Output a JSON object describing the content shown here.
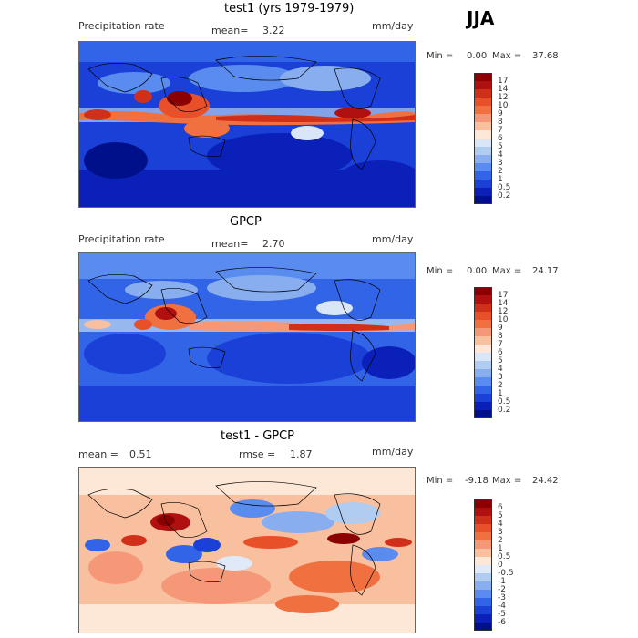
{
  "season": "JJA",
  "panels": [
    {
      "title": "test1 (yrs 1979-1979)",
      "variable": "Precipitation rate",
      "mean_label": "mean=",
      "mean_value": "3.22",
      "units": "mm/day",
      "min_label": "Min =",
      "min_value": "0.00",
      "max_label": "Max =",
      "max_value": "37.68",
      "colorbar": {
        "labels": [
          "17",
          "14",
          "12",
          "10",
          "9",
          "8",
          "7",
          "6",
          "5",
          "4",
          "3",
          "2",
          "1",
          "0.5",
          "0.2"
        ],
        "colors": [
          "#8b0000",
          "#b01010",
          "#d0301a",
          "#e8502a",
          "#f07040",
          "#f59878",
          "#f9c0a0",
          "#fde8d8",
          "#d8e6f8",
          "#b0ccf0",
          "#88aef0",
          "#5a8cf0",
          "#3264e8",
          "#1a40d8",
          "#0a20b8",
          "#00108a"
        ]
      },
      "chart_data": {
        "type": "heatmap",
        "title": "test1 (yrs 1979-1979)",
        "units": "mm/day",
        "mean": 3.22,
        "min": 0.0,
        "max": 37.68,
        "levels": [
          0.2,
          0.5,
          1,
          2,
          3,
          4,
          5,
          6,
          7,
          8,
          9,
          10,
          12,
          14,
          17
        ]
      }
    },
    {
      "title": "GPCP",
      "variable": "Precipitation rate",
      "mean_label": "mean=",
      "mean_value": "2.70",
      "units": "mm/day",
      "min_label": "Min =",
      "min_value": "0.00",
      "max_label": "Max =",
      "max_value": "24.17",
      "colorbar": {
        "labels": [
          "17",
          "14",
          "12",
          "10",
          "9",
          "8",
          "7",
          "6",
          "5",
          "4",
          "3",
          "2",
          "1",
          "0.5",
          "0.2"
        ],
        "colors": [
          "#8b0000",
          "#b01010",
          "#d0301a",
          "#e8502a",
          "#f07040",
          "#f59878",
          "#f9c0a0",
          "#fde8d8",
          "#d8e6f8",
          "#b0ccf0",
          "#88aef0",
          "#5a8cf0",
          "#3264e8",
          "#1a40d8",
          "#0a20b8",
          "#00108a"
        ]
      },
      "chart_data": {
        "type": "heatmap",
        "title": "GPCP",
        "units": "mm/day",
        "mean": 2.7,
        "min": 0.0,
        "max": 24.17,
        "levels": [
          0.2,
          0.5,
          1,
          2,
          3,
          4,
          5,
          6,
          7,
          8,
          9,
          10,
          12,
          14,
          17
        ]
      }
    },
    {
      "title": "test1 - GPCP",
      "mean_label": "mean =",
      "mean_value": "0.51",
      "rmse_label": "rmse =",
      "rmse_value": "1.87",
      "units": "mm/day",
      "min_label": "Min =",
      "min_value": "-9.18",
      "max_label": "Max =",
      "max_value": "24.42",
      "colorbar": {
        "labels": [
          "6",
          "5",
          "4",
          "3",
          "2",
          "1",
          "0.5",
          "0",
          "-0.5",
          "-1",
          "-2",
          "-3",
          "-4",
          "-5",
          "-6"
        ],
        "colors": [
          "#8b0000",
          "#b01010",
          "#d0301a",
          "#e8502a",
          "#f07040",
          "#f59878",
          "#f9c0a0",
          "#fde8d8",
          "#dfe9f8",
          "#b0ccf0",
          "#88aef0",
          "#5a8cf0",
          "#3264e8",
          "#1a40d8",
          "#0a20b8",
          "#00108a"
        ]
      },
      "chart_data": {
        "type": "heatmap",
        "title": "test1 - GPCP",
        "units": "mm/day",
        "mean": 0.51,
        "rmse": 1.87,
        "min": -9.18,
        "max": 24.42,
        "levels": [
          -6,
          -5,
          -4,
          -3,
          -2,
          -1,
          -0.5,
          0,
          0.5,
          1,
          2,
          3,
          4,
          5,
          6
        ]
      }
    }
  ]
}
